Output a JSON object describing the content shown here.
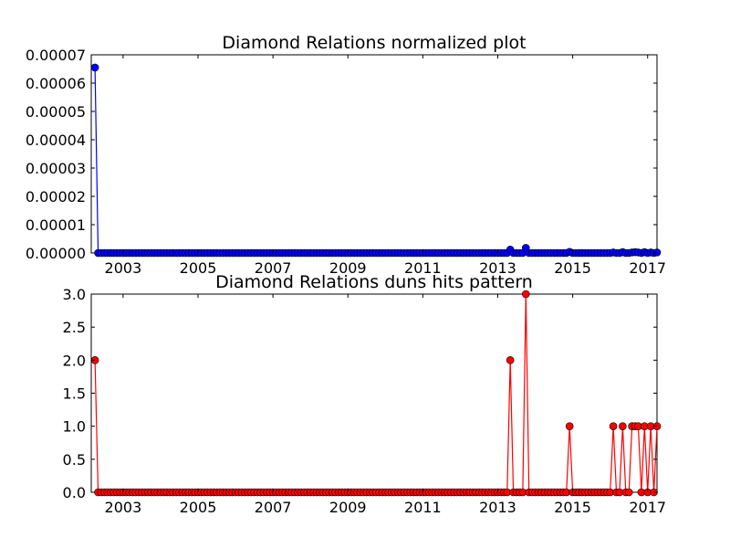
{
  "chart_data": [
    {
      "type": "line",
      "title": "Diamond Relations normalized plot",
      "xlabel": "",
      "ylabel": "",
      "xlim": [
        2002.15,
        2017.25
      ],
      "ylim": [
        0,
        7e-05
      ],
      "x_ticks": [
        2003,
        2005,
        2007,
        2009,
        2011,
        2013,
        2015,
        2017
      ],
      "x_tick_labels": [
        "2003",
        "2005",
        "2007",
        "2009",
        "2011",
        "2013",
        "2015",
        "2017"
      ],
      "y_ticks": [
        0,
        1e-05,
        2e-05,
        3e-05,
        4e-05,
        5e-05,
        6e-05,
        7e-05
      ],
      "y_tick_labels": [
        "0.00000",
        "0.00001",
        "0.00002",
        "0.00003",
        "0.00004",
        "0.00005",
        "0.00006",
        "0.00007"
      ],
      "grid": false,
      "color": "#0000ff",
      "points": [
        [
          2002.25,
          6.55e-05
        ],
        [
          2013.33,
          1.2e-06
        ],
        [
          2013.75,
          1.8e-06
        ],
        [
          2014.92,
          4e-07
        ],
        [
          2016.08,
          2e-07
        ],
        [
          2016.33,
          3e-07
        ],
        [
          2016.58,
          2e-07
        ],
        [
          2016.67,
          3e-07
        ],
        [
          2016.75,
          2e-07
        ],
        [
          2016.92,
          3e-07
        ],
        [
          2017.08,
          2e-07
        ],
        [
          2017.25,
          2e-07
        ]
      ]
    },
    {
      "type": "line",
      "title": "Diamond Relations duns hits pattern",
      "xlabel": "",
      "ylabel": "",
      "xlim": [
        2002.15,
        2017.25
      ],
      "ylim": [
        0,
        3
      ],
      "x_ticks": [
        2003,
        2005,
        2007,
        2009,
        2011,
        2013,
        2015,
        2017
      ],
      "x_tick_labels": [
        "2003",
        "2005",
        "2007",
        "2009",
        "2011",
        "2013",
        "2015",
        "2017"
      ],
      "y_ticks": [
        0,
        0.5,
        1,
        1.5,
        2,
        2.5,
        3
      ],
      "y_tick_labels": [
        "0.0",
        "0.5",
        "1.0",
        "1.5",
        "2.0",
        "2.5",
        "3.0"
      ],
      "grid": false,
      "color": "#ff0000",
      "points": [
        [
          2002.25,
          2
        ],
        [
          2013.33,
          2
        ],
        [
          2013.75,
          3
        ],
        [
          2014.92,
          1
        ],
        [
          2016.08,
          1
        ],
        [
          2016.33,
          1
        ],
        [
          2016.58,
          1
        ],
        [
          2016.67,
          1
        ],
        [
          2016.75,
          1
        ],
        [
          2016.92,
          1
        ],
        [
          2017.08,
          1
        ],
        [
          2017.25,
          1
        ]
      ]
    }
  ]
}
